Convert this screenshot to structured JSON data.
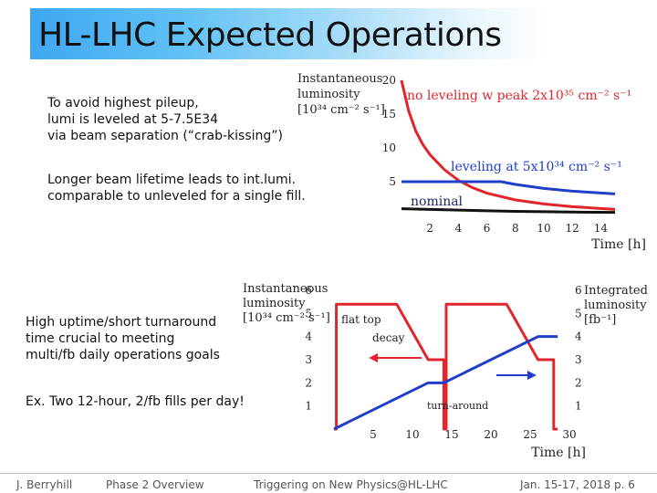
{
  "slide": {
    "title": "HL-LHC Expected Operations",
    "text_block_1": [
      "To avoid highest pileup,",
      "lumi is leveled at 5-7.5E34",
      "via beam separation (“crab-kissing”)"
    ],
    "text_block_2": [
      "Longer beam lifetime leads to int.lumi.",
      "comparable to unleveled for a single fill."
    ],
    "text_block_3": [
      "High uptime/short turnaround",
      "time crucial to meeting",
      "multi/fb daily operations goals"
    ],
    "text_block_4": "Ex. Two 12-hour, 2/fb fills per day!"
  },
  "footer": {
    "author": "J. Berryhill",
    "section": "Phase 2 Overview",
    "event": "Triggering on New Physics@HL-LHC",
    "date_page": "Jan. 15-17, 2018 p. 6"
  },
  "colors": {
    "red": "#e0262a",
    "blue": "#1f3fc8",
    "black": "#111111",
    "title_bar": "#3fa7f2"
  },
  "chart_data": [
    {
      "type": "line",
      "ylabel_lines": [
        "Instantaneous",
        "luminosity",
        "[10³⁴ cm⁻² s⁻¹]"
      ],
      "xlabel": "Time [h]",
      "x_ticks": [
        "2",
        "4",
        "6",
        "8",
        "10",
        "12",
        "14"
      ],
      "y_ticks": [
        "5",
        "10",
        "15",
        "20"
      ],
      "xlim": [
        0,
        15
      ],
      "ylim": [
        0,
        20
      ],
      "series": [
        {
          "name": "no leveling w peak 2x10³⁵ cm⁻² s⁻¹",
          "color": "#e0262a",
          "x": [
            0,
            0.5,
            1,
            1.5,
            2,
            3,
            4,
            5,
            6,
            8,
            10,
            12,
            15
          ],
          "y": [
            20,
            15.5,
            12.5,
            10.5,
            9,
            6.8,
            5.2,
            4.1,
            3.3,
            2.3,
            1.7,
            1.3,
            0.9
          ]
        },
        {
          "name": "leveling at 5x10³⁴ cm⁻² s⁻¹",
          "color": "#1f3fc8",
          "x": [
            0,
            7,
            8,
            10,
            12,
            15
          ],
          "y": [
            5,
            5,
            4.6,
            4.0,
            3.6,
            3.2
          ]
        },
        {
          "name": "nominal",
          "color": "#111111",
          "x": [
            0,
            2,
            4,
            6,
            8,
            10,
            12,
            15
          ],
          "y": [
            1.0,
            0.9,
            0.8,
            0.7,
            0.6,
            0.55,
            0.5,
            0.45
          ]
        }
      ]
    },
    {
      "type": "line",
      "ylabel_lines": [
        "Instantaneous",
        "luminosity",
        "[10³⁴ cm⁻² s⁻¹]"
      ],
      "y2label_lines": [
        "Integrated",
        "luminosity",
        "[fb⁻¹]"
      ],
      "xlabel": "Time [h]",
      "x_ticks": [
        "5",
        "10",
        "15",
        "20",
        "25",
        "30"
      ],
      "y_ticks": [
        "1",
        "2",
        "3",
        "4",
        "5",
        "6"
      ],
      "y2_ticks": [
        "1",
        "2",
        "3",
        "4",
        "5",
        "6"
      ],
      "xlim": [
        0,
        30
      ],
      "ylim": [
        0,
        6
      ],
      "annotations": [
        "flat top",
        "decay",
        "turn-around"
      ],
      "series": [
        {
          "name": "instantaneous",
          "color": "#e0262a",
          "x": [
            0,
            0.3,
            0.3,
            8,
            12,
            12,
            14,
            14,
            14.3,
            14.3,
            22,
            26,
            26,
            28,
            28,
            28.5,
            28.5
          ],
          "y": [
            0,
            0,
            5.4,
            5.4,
            3.0,
            3.0,
            3.0,
            0,
            0,
            5.4,
            5.4,
            3.0,
            3.0,
            3.0,
            0,
            0,
            0
          ]
        },
        {
          "name": "integrated",
          "color": "#1f3fc8",
          "x": [
            0,
            12,
            14,
            26,
            28.5
          ],
          "y": [
            0,
            2.0,
            2.0,
            4.0,
            4.0
          ]
        }
      ]
    }
  ]
}
